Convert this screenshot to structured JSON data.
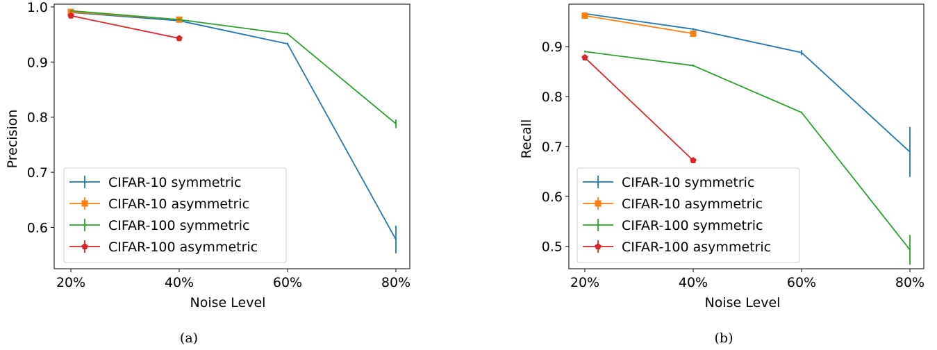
{
  "colors": {
    "CIFAR-10 symmetric": "#1f77b4",
    "CIFAR-10 asymmetric": "#ff7f0e",
    "CIFAR-100 symmetric": "#2ca02c",
    "CIFAR-100 asymmetric": "#d62728"
  },
  "chart_data": [
    {
      "type": "line",
      "caption": "(a)",
      "xlabel": "Noise Level",
      "ylabel": "Precision",
      "categories": [
        "20%",
        "40%",
        "60%",
        "80%"
      ],
      "ylim": [
        0.525,
        1.005
      ],
      "yticks": [
        0.6,
        0.7,
        0.8,
        0.9,
        1.0
      ],
      "ytick_labels": [
        "0.6",
        "0.7",
        "0.8",
        "0.9",
        "1.0"
      ],
      "grid": false,
      "legend_position": "lower-left",
      "series": [
        {
          "name": "CIFAR-10 symmetric",
          "marker": "none",
          "x": [
            0,
            1,
            2,
            3
          ],
          "values": [
            0.99,
            0.975,
            0.933,
            0.578
          ],
          "err": [
            0.002,
            0.002,
            0.002,
            0.025
          ]
        },
        {
          "name": "CIFAR-10 asymmetric",
          "marker": "square",
          "x": [
            0,
            1
          ],
          "values": [
            0.991,
            0.977
          ],
          "err": [
            0.002,
            0.002
          ]
        },
        {
          "name": "CIFAR-100 symmetric",
          "marker": "none",
          "x": [
            0,
            1,
            2,
            3
          ],
          "values": [
            0.993,
            0.977,
            0.951,
            0.788
          ],
          "err": [
            0.002,
            0.002,
            0.002,
            0.008
          ]
        },
        {
          "name": "CIFAR-100 asymmetric",
          "marker": "pentagon",
          "x": [
            0,
            1
          ],
          "values": [
            0.984,
            0.943
          ],
          "err": [
            0.002,
            0.002
          ]
        }
      ]
    },
    {
      "type": "line",
      "caption": "(b)",
      "xlabel": "Noise Level",
      "ylabel": "Recall",
      "categories": [
        "20%",
        "40%",
        "60%",
        "80%"
      ],
      "ylim": [
        0.455,
        0.985
      ],
      "yticks": [
        0.5,
        0.6,
        0.7,
        0.8,
        0.9
      ],
      "ytick_labels": [
        "0.5",
        "0.6",
        "0.7",
        "0.8",
        "0.9"
      ],
      "grid": false,
      "legend_position": "lower-left",
      "series": [
        {
          "name": "CIFAR-10 symmetric",
          "marker": "none",
          "x": [
            0,
            1,
            2,
            3
          ],
          "values": [
            0.966,
            0.935,
            0.888,
            0.689
          ],
          "err": [
            0.002,
            0.002,
            0.005,
            0.05
          ]
        },
        {
          "name": "CIFAR-10 asymmetric",
          "marker": "square",
          "x": [
            0,
            1
          ],
          "values": [
            0.962,
            0.926
          ],
          "err": [
            0.002,
            0.002
          ]
        },
        {
          "name": "CIFAR-100 symmetric",
          "marker": "none",
          "x": [
            0,
            1,
            2,
            3
          ],
          "values": [
            0.89,
            0.862,
            0.768,
            0.493
          ],
          "err": [
            0.002,
            0.002,
            0.002,
            0.03
          ]
        },
        {
          "name": "CIFAR-100 asymmetric",
          "marker": "pentagon",
          "x": [
            0,
            1
          ],
          "values": [
            0.878,
            0.672
          ],
          "err": [
            0.002,
            0.002
          ]
        }
      ]
    }
  ]
}
